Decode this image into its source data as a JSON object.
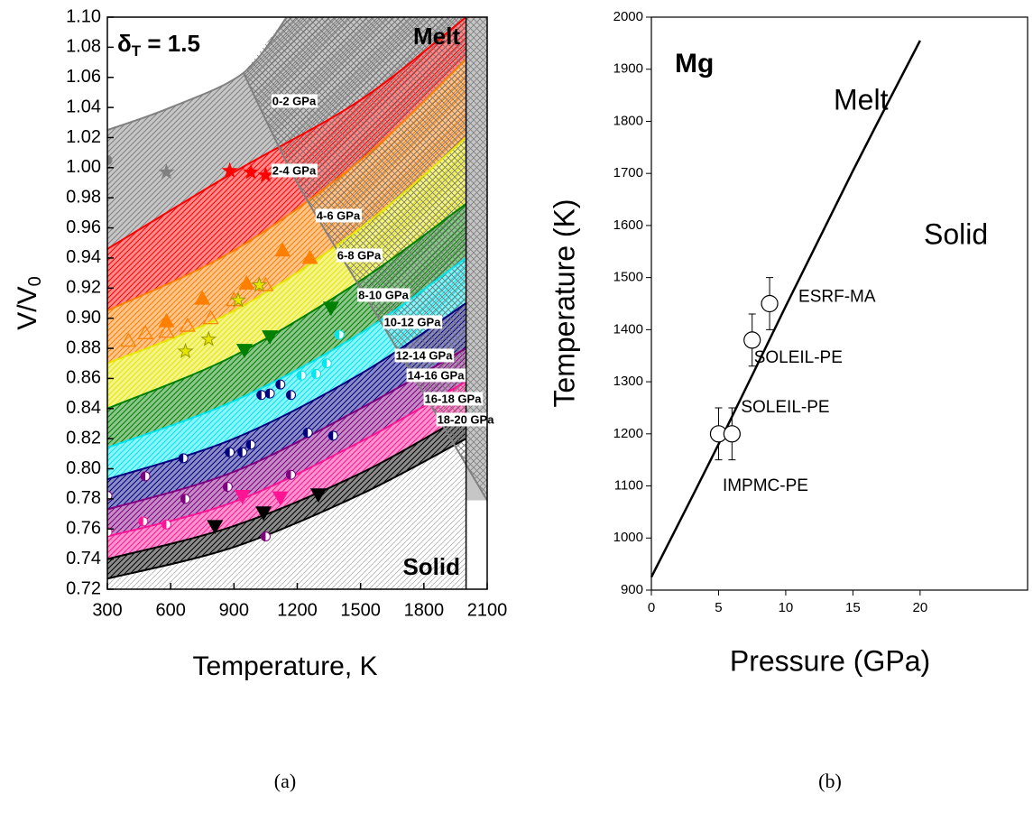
{
  "chart_data": [
    {
      "type": "line",
      "y_label": {
        "text": "V/V",
        "sub": "0"
      },
      "x_label": "Temperature, K",
      "annotation": {
        "text": "δ",
        "sub": "T",
        "after": " = 1.5"
      },
      "region_labels": [
        "Melt",
        "Solid"
      ],
      "caption": "(a)",
      "xlim": [
        300,
        2100
      ],
      "xticks": [
        300,
        600,
        900,
        1200,
        1500,
        1800,
        2100
      ],
      "ylim": [
        0.72,
        1.1
      ],
      "yticks": [
        0.72,
        0.74,
        0.76,
        0.78,
        {
          "value": 0.8,
          "label": "0.80"
        },
        0.82,
        0.84,
        0.86,
        0.88,
        {
          "value": 0.9,
          "label": "0.90"
        },
        0.92,
        0.94,
        0.96,
        0.98,
        {
          "value": 1,
          "label": "1.00"
        },
        1.02,
        1.04,
        1.06,
        1.08,
        {
          "value": 1.1,
          "label": "1.10"
        }
      ],
      "series": [
        {
          "color": "#808080",
          "x": [
            300,
            600,
            945,
            1150
          ],
          "values": [
            1.025,
            1.04,
            1.063,
            1.1
          ]
        },
        {
          "color": "#ff0000",
          "x": [
            300,
            900,
            1500,
            2000
          ],
          "values": [
            0.946,
            0.997,
            1.045,
            1.1
          ]
        },
        {
          "color": "#ff7f00",
          "x": [
            300,
            900,
            1500,
            2000
          ],
          "values": [
            0.905,
            0.945,
            1.005,
            1.072
          ]
        },
        {
          "color": "#e6e600",
          "x": [
            300,
            900,
            1500,
            2000
          ],
          "values": [
            0.87,
            0.905,
            0.96,
            1.02
          ]
        },
        {
          "color": "#008000",
          "x": [
            300,
            900,
            1500,
            2000
          ],
          "values": [
            0.84,
            0.875,
            0.925,
            0.976
          ]
        },
        {
          "color": "#00e5ee",
          "x": [
            300,
            900,
            1500,
            2000
          ],
          "values": [
            0.814,
            0.845,
            0.89,
            0.94
          ]
        },
        {
          "color": "#000080",
          "x": [
            300,
            900,
            1500,
            2000
          ],
          "values": [
            0.793,
            0.82,
            0.863,
            0.91
          ]
        },
        {
          "color": "#800080",
          "x": [
            300,
            900,
            1500,
            2000
          ],
          "values": [
            0.773,
            0.798,
            0.84,
            0.88
          ]
        },
        {
          "color": "#ff1493",
          "x": [
            300,
            900,
            1500,
            2000
          ],
          "values": [
            0.755,
            0.778,
            0.818,
            0.858
          ]
        },
        {
          "color": "#000000",
          "x": [
            300,
            900,
            1500,
            2000
          ],
          "values": [
            0.74,
            0.762,
            0.797,
            0.836
          ]
        },
        {
          "color": "#000000",
          "x": [
            300,
            900,
            1500,
            2000
          ],
          "values": [
            0.727,
            0.748,
            0.783,
            0.82
          ]
        }
      ],
      "melt_boundary": {
        "color": "#808080",
        "x": [
          945,
          1200,
          1500,
          1800,
          2100
        ],
        "values": [
          1.063,
          0.99,
          0.92,
          0.85,
          0.779
        ]
      },
      "melt_line_x": 2000,
      "band_labels": [
        {
          "text": "0-2 GPa",
          "color": "#909090"
        },
        {
          "text": "2-4 GPa",
          "color": "#ff0000"
        },
        {
          "text": "4-6 GPa",
          "color": "#ff7f00"
        },
        {
          "text": "6-8 GPa",
          "color": "#999900"
        },
        {
          "text": "8-10 GPa",
          "color": "#008000"
        },
        {
          "text": "10-12 GPa",
          "color": "#00e5ee"
        },
        {
          "text": "12-14 GPa",
          "color": "#000080"
        },
        {
          "text": "14-16 GPa",
          "color": "#800080"
        },
        {
          "text": "16-18 GPa",
          "color": "#ff1493"
        },
        {
          "text": "18-20 GPa",
          "color": "#000000"
        }
      ],
      "markers": [
        {
          "shape": "circle",
          "color": "#808080",
          "filled": true,
          "x": [
            300
          ],
          "values": [
            1.005
          ]
        },
        {
          "shape": "star",
          "color": "#808080",
          "filled": true,
          "x": [
            580
          ],
          "values": [
            0.997
          ]
        },
        {
          "shape": "star",
          "color": "#ff0000",
          "filled": true,
          "x": [
            880,
            980,
            1050
          ],
          "values": [
            0.998,
            0.997,
            0.995
          ]
        },
        {
          "shape": "triangle",
          "color": "#ff7f00",
          "filled": true,
          "x": [
            580,
            750,
            960,
            1130,
            1260
          ],
          "values": [
            0.898,
            0.913,
            0.923,
            0.945,
            0.94
          ]
        },
        {
          "shape": "triangle",
          "color": "#ff7f00",
          "filled": false,
          "x": [
            400,
            480,
            580,
            680,
            790,
            900,
            1050
          ],
          "values": [
            0.885,
            0.89,
            0.891,
            0.895,
            0.9,
            0.912,
            0.922
          ]
        },
        {
          "shape": "star",
          "color": "#e6e600",
          "filled": true,
          "x": [
            670,
            780,
            920,
            1020
          ],
          "values": [
            0.878,
            0.886,
            0.912,
            0.922
          ]
        },
        {
          "shape": "down",
          "color": "#008000",
          "filled": true,
          "x": [
            950,
            1070,
            1360
          ],
          "values": [
            0.879,
            0.888,
            0.907
          ]
        },
        {
          "shape": "half",
          "color": "#00e5ee",
          "filled": true,
          "x": [
            1220,
            1290,
            1340,
            1400
          ],
          "values": [
            0.862,
            0.863,
            0.87,
            0.889
          ]
        },
        {
          "shape": "half",
          "color": "#000080",
          "filled": true,
          "x": [
            660,
            880,
            940,
            980,
            1030,
            1070,
            1120,
            1170,
            1250,
            1370
          ],
          "values": [
            0.807,
            0.811,
            0.811,
            0.816,
            0.849,
            0.85,
            0.856,
            0.849,
            0.824,
            0.822
          ]
        },
        {
          "shape": "half",
          "color": "#800080",
          "filled": true,
          "x": [
            300,
            480,
            670,
            870,
            1170,
            1050
          ],
          "values": [
            0.782,
            0.795,
            0.78,
            0.788,
            0.796,
            0.755
          ]
        },
        {
          "shape": "down",
          "color": "#ff1493",
          "filled": true,
          "x": [
            940,
            1120
          ],
          "values": [
            0.782,
            0.781
          ]
        },
        {
          "shape": "half",
          "color": "#ff1493",
          "filled": true,
          "x": [
            300,
            470,
            580
          ],
          "values": [
            0.758,
            0.765,
            0.763
          ]
        },
        {
          "shape": "down",
          "color": "#000000",
          "filled": true,
          "x": [
            810,
            1040,
            1300
          ],
          "values": [
            0.762,
            0.771,
            0.783
          ]
        }
      ]
    },
    {
      "type": "line",
      "title": "Mg",
      "y_label": "Temperature (K)",
      "x_label": "Pressure (GPa)",
      "region_labels": [
        "Melt",
        "Solid"
      ],
      "caption": "(b)",
      "xlim": [
        0,
        28
      ],
      "xticks": [
        0,
        5,
        10,
        15,
        20
      ],
      "ylim": [
        900,
        2000
      ],
      "yticks": [
        900,
        1000,
        1100,
        1200,
        1300,
        1400,
        1500,
        1600,
        1700,
        1800,
        1900,
        2000
      ],
      "line": {
        "color": "#000000",
        "x": [
          0,
          5,
          10,
          15,
          20
        ],
        "values": [
          925,
          1180,
          1445,
          1705,
          1955
        ]
      },
      "points": {
        "x": [
          5,
          6,
          7.5,
          8.8
        ],
        "values": [
          1200,
          1200,
          1380,
          1450
        ],
        "errors": [
          50,
          50,
          50,
          50
        ],
        "labels": [
          "IMPMC-PE",
          "SOLEIL-PE",
          "SOLEIL-PE",
          "ESRF-MA"
        ]
      }
    }
  ]
}
